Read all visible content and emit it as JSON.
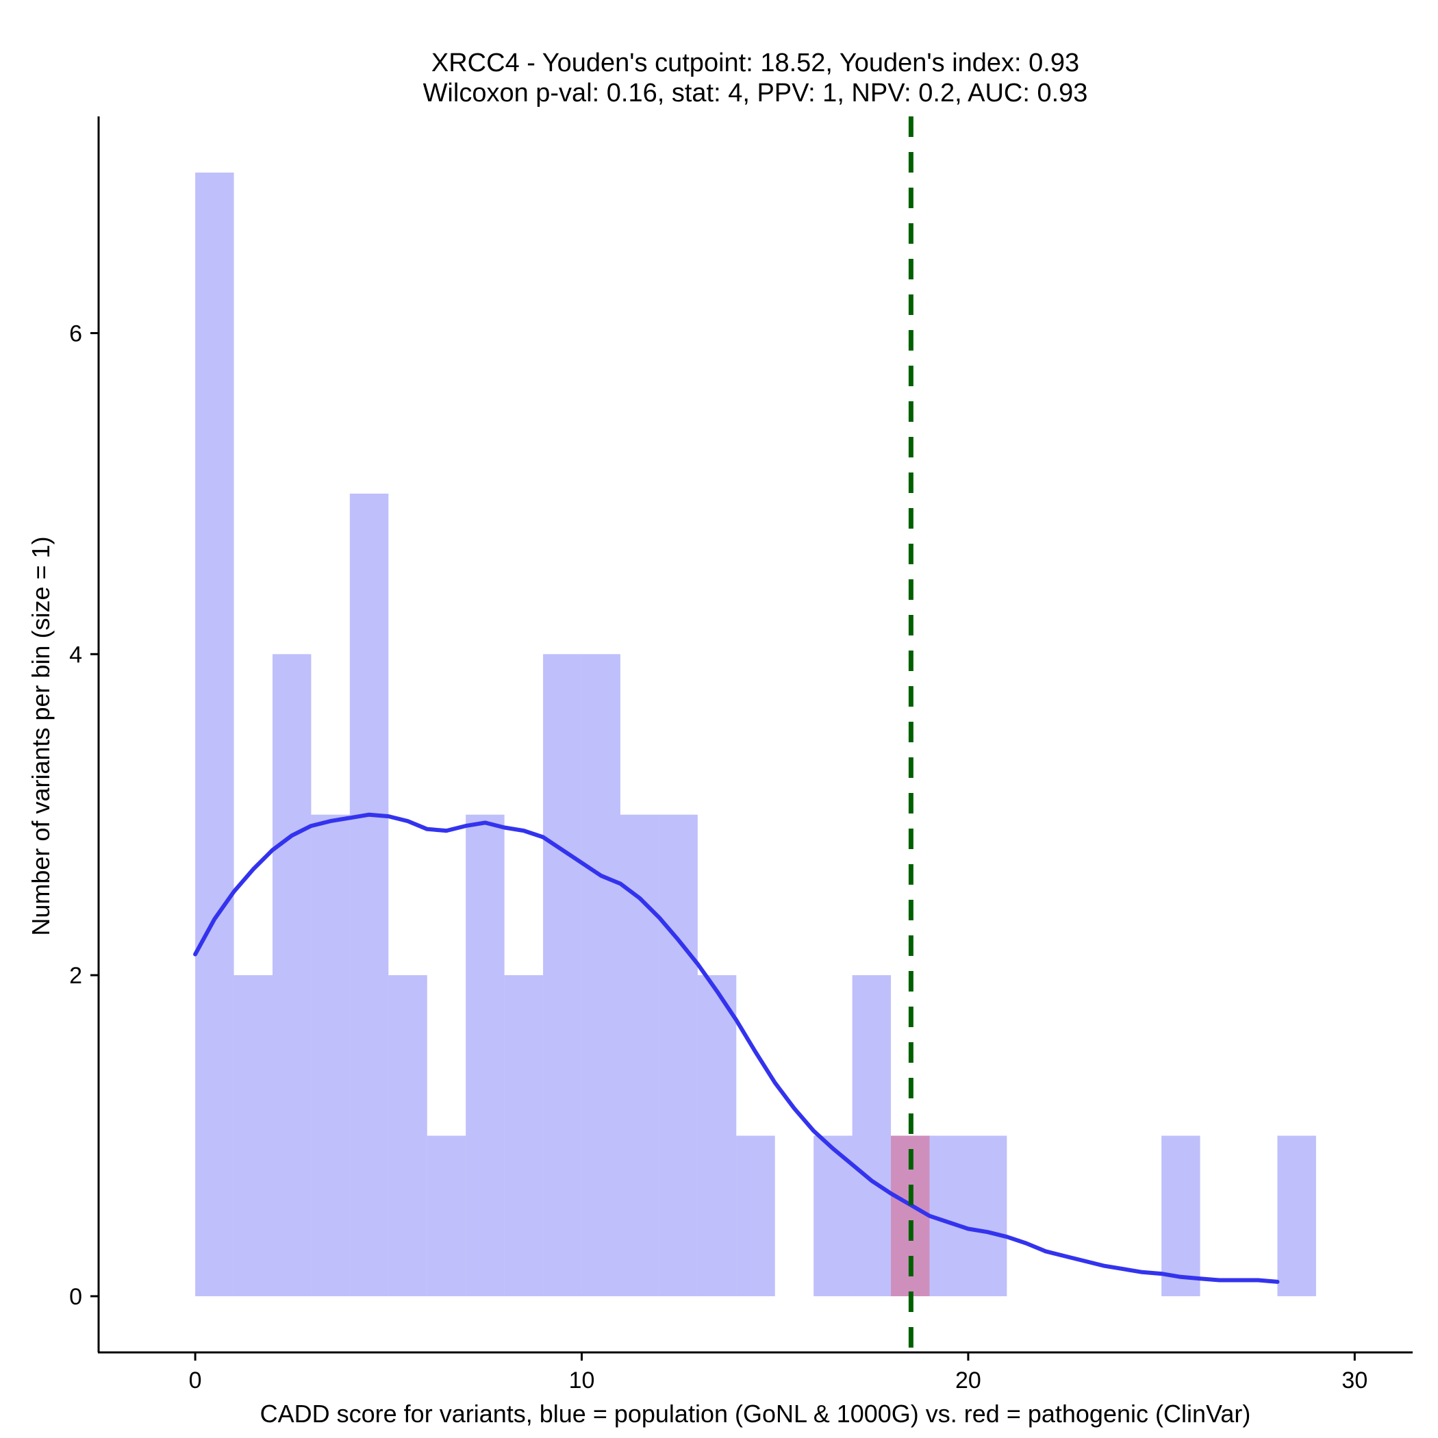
{
  "chart_data": {
    "type": "histogram",
    "title_line1": "XRCC4 - Youden's cutpoint: 18.52, Youden's index: 0.93",
    "title_line2": "Wilcoxon p-val: 0.16, stat: 4, PPV: 1, NPV: 0.2, AUC: 0.93",
    "xlabel": "CADD score for variants, blue = population (GoNL & 1000G) vs. red = pathogenic (ClinVar)",
    "ylabel": "Number of variants per bin (size = 1)",
    "xlim": [
      -2.5,
      31.5
    ],
    "ylim": [
      -0.35,
      7.35
    ],
    "x_ticks": [
      0,
      10,
      20,
      30
    ],
    "y_ticks": [
      0,
      2,
      4,
      6
    ],
    "x_tick_labels": [
      "0",
      "10",
      "20",
      "30"
    ],
    "y_tick_labels": [
      "0",
      "2",
      "4",
      "6"
    ],
    "bin_width": 1,
    "series": [
      {
        "name": "population (GoNL & 1000G)",
        "color": "#8080f8",
        "opacity": 0.5,
        "bin_starts": [
          0,
          1,
          2,
          3,
          4,
          5,
          6,
          7,
          8,
          9,
          10,
          11,
          12,
          13,
          14,
          15,
          16,
          17,
          18,
          19,
          20,
          21,
          22,
          23,
          24,
          25,
          26,
          27,
          28
        ],
        "counts": [
          7,
          2,
          4,
          3,
          5,
          2,
          1,
          3,
          2,
          4,
          4,
          3,
          3,
          2,
          1,
          0,
          1,
          2,
          1,
          1,
          1,
          0,
          0,
          0,
          0,
          1,
          0,
          0,
          1
        ]
      },
      {
        "name": "pathogenic (ClinVar)",
        "color": "#e06080",
        "opacity": 0.5,
        "bin_starts": [
          18
        ],
        "counts": [
          1
        ]
      }
    ],
    "density_curve": {
      "name": "population density (scaled)",
      "color": "#3333ee",
      "x": [
        0,
        0.5,
        1,
        1.5,
        2,
        2.5,
        3,
        3.5,
        4,
        4.5,
        5,
        5.5,
        6,
        6.5,
        7,
        7.5,
        8,
        8.5,
        9,
        9.5,
        10,
        10.5,
        11,
        11.5,
        12,
        12.5,
        13,
        13.5,
        14,
        14.5,
        15,
        15.5,
        16,
        16.5,
        17,
        17.5,
        18,
        18.5,
        19,
        19.5,
        20,
        20.5,
        21,
        21.5,
        22,
        22.5,
        23,
        23.5,
        24,
        24.5,
        25,
        25.5,
        26,
        26.5,
        27,
        27.5,
        28
      ],
      "y": [
        2.13,
        2.35,
        2.52,
        2.66,
        2.78,
        2.87,
        2.93,
        2.96,
        2.98,
        3.0,
        2.99,
        2.96,
        2.91,
        2.9,
        2.93,
        2.95,
        2.92,
        2.9,
        2.86,
        2.78,
        2.7,
        2.62,
        2.57,
        2.48,
        2.36,
        2.22,
        2.07,
        1.9,
        1.72,
        1.52,
        1.33,
        1.17,
        1.03,
        0.92,
        0.82,
        0.72,
        0.64,
        0.57,
        0.5,
        0.46,
        0.42,
        0.4,
        0.37,
        0.33,
        0.28,
        0.25,
        0.22,
        0.19,
        0.17,
        0.15,
        0.14,
        0.12,
        0.11,
        0.1,
        0.1,
        0.1,
        0.09
      ]
    },
    "cutpoint": {
      "value": 18.52,
      "color": "#006000",
      "style": "dashed"
    }
  }
}
